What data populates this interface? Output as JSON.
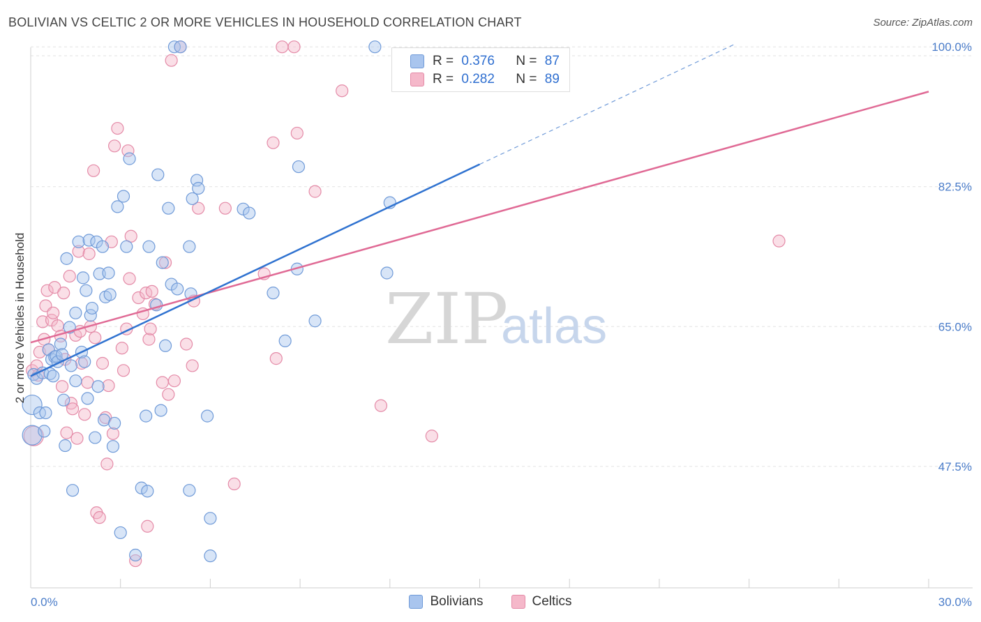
{
  "title": "BOLIVIAN VS CELTIC 2 OR MORE VEHICLES IN HOUSEHOLD CORRELATION CHART",
  "source": "Source: ZipAtlas.com",
  "watermark": {
    "zip": "ZIP",
    "atlas": "atlas"
  },
  "legend": {
    "r_label": "R = ",
    "n_label": "N = ",
    "bolivians": {
      "r": "0.376",
      "n": "87"
    },
    "celtics": {
      "r": "0.282",
      "n": "89"
    }
  },
  "colors": {
    "blue_fill": "#a9c5ee",
    "blue_stroke": "#6f9ad8",
    "blue_line": "#2f72d0",
    "pink_fill": "#f5b8ca",
    "pink_stroke": "#e48aa7",
    "pink_line": "#e06a95",
    "grid": "#e2e2e2",
    "axis_text": "#4a7cc9"
  },
  "chart_data": {
    "type": "scatter",
    "title": "BOLIVIAN VS CELTIC 2 OR MORE VEHICLES IN HOUSEHOLD CORRELATION CHART",
    "xlabel": "",
    "ylabel": "2 or more Vehicles in Household",
    "xlim": [
      0,
      30
    ],
    "ylim": [
      32.3,
      101.5
    ],
    "x_tick_labels": [
      "0.0%",
      "30.0%"
    ],
    "y_ticks": [
      47.5,
      65.0,
      82.5,
      100.0
    ],
    "y_tick_labels": [
      "47.5%",
      "65.0%",
      "82.5%",
      "100.0%"
    ],
    "legend_labels": [
      "Bolivians",
      "Celtics"
    ],
    "series": [
      {
        "name": "Bolivians",
        "trend": {
          "x0": 0.0,
          "y0": 58.8,
          "x1": 15.0,
          "y1": 85.3,
          "dash_to_x": 23.5,
          "dash_to_y": 100.3
        },
        "points": [
          [
            0.05,
            55.2
          ],
          [
            0.05,
            51.4
          ],
          [
            0.1,
            59.0
          ],
          [
            0.2,
            58.5
          ],
          [
            0.3,
            54.2
          ],
          [
            0.4,
            59.2
          ],
          [
            0.45,
            51.9
          ],
          [
            0.5,
            54.2
          ],
          [
            0.6,
            62.1
          ],
          [
            0.65,
            59.1
          ],
          [
            0.7,
            60.9
          ],
          [
            0.75,
            58.8
          ],
          [
            0.8,
            61.2
          ],
          [
            0.85,
            61.3
          ],
          [
            0.9,
            60.6
          ],
          [
            1.0,
            62.8
          ],
          [
            1.05,
            61.5
          ],
          [
            1.1,
            55.8
          ],
          [
            1.15,
            50.1
          ],
          [
            1.2,
            73.5
          ],
          [
            1.3,
            64.9
          ],
          [
            1.35,
            60.1
          ],
          [
            1.4,
            44.5
          ],
          [
            1.5,
            66.7
          ],
          [
            1.5,
            58.2
          ],
          [
            1.6,
            75.6
          ],
          [
            1.7,
            61.8
          ],
          [
            1.75,
            71.1
          ],
          [
            1.8,
            60.6
          ],
          [
            1.85,
            69.5
          ],
          [
            1.9,
            56.0
          ],
          [
            1.95,
            75.8
          ],
          [
            2.0,
            66.4
          ],
          [
            2.05,
            67.3
          ],
          [
            2.15,
            51.1
          ],
          [
            2.2,
            75.6
          ],
          [
            2.25,
            57.5
          ],
          [
            2.3,
            71.6
          ],
          [
            2.4,
            75.0
          ],
          [
            2.45,
            53.3
          ],
          [
            2.5,
            68.7
          ],
          [
            2.6,
            71.7
          ],
          [
            2.65,
            69.0
          ],
          [
            2.75,
            50.0
          ],
          [
            2.8,
            52.9
          ],
          [
            2.9,
            80.0
          ],
          [
            3.0,
            39.2
          ],
          [
            3.1,
            81.3
          ],
          [
            3.2,
            75.0
          ],
          [
            3.3,
            86.0
          ],
          [
            3.5,
            36.4
          ],
          [
            3.7,
            44.8
          ],
          [
            3.85,
            53.8
          ],
          [
            3.9,
            44.4
          ],
          [
            3.95,
            75.0
          ],
          [
            4.2,
            67.7
          ],
          [
            4.25,
            84.0
          ],
          [
            4.35,
            54.5
          ],
          [
            4.4,
            73.0
          ],
          [
            4.5,
            62.6
          ],
          [
            4.6,
            79.8
          ],
          [
            4.7,
            70.3
          ],
          [
            4.8,
            100.0
          ],
          [
            4.9,
            69.7
          ],
          [
            5.0,
            100.0
          ],
          [
            5.3,
            44.5
          ],
          [
            5.3,
            75.0
          ],
          [
            5.35,
            69.1
          ],
          [
            5.4,
            81.0
          ],
          [
            5.55,
            83.3
          ],
          [
            5.6,
            82.3
          ],
          [
            5.9,
            53.8
          ],
          [
            6.0,
            41.0
          ],
          [
            6.0,
            36.3
          ],
          [
            7.1,
            79.7
          ],
          [
            7.3,
            79.2
          ],
          [
            8.1,
            69.2
          ],
          [
            8.5,
            63.2
          ],
          [
            8.9,
            72.2
          ],
          [
            8.95,
            85.0
          ],
          [
            9.5,
            65.7
          ],
          [
            11.5,
            100.0
          ],
          [
            11.9,
            71.7
          ],
          [
            12.0,
            80.5
          ]
        ]
      },
      {
        "name": "Celtics",
        "trend": {
          "x0": 0.0,
          "y0": 63.0,
          "x1": 30.0,
          "y1": 94.4
        },
        "points": [
          [
            0.05,
            59.5
          ],
          [
            0.1,
            51.3
          ],
          [
            0.2,
            60.1
          ],
          [
            0.25,
            58.9
          ],
          [
            0.3,
            61.8
          ],
          [
            0.4,
            65.6
          ],
          [
            0.45,
            63.4
          ],
          [
            0.5,
            67.6
          ],
          [
            0.55,
            69.5
          ],
          [
            0.6,
            62.1
          ],
          [
            0.7,
            65.8
          ],
          [
            0.75,
            66.7
          ],
          [
            0.8,
            69.9
          ],
          [
            0.9,
            65.1
          ],
          [
            1.0,
            63.8
          ],
          [
            1.05,
            57.5
          ],
          [
            1.1,
            69.2
          ],
          [
            1.15,
            60.9
          ],
          [
            1.2,
            51.7
          ],
          [
            1.3,
            71.3
          ],
          [
            1.35,
            55.4
          ],
          [
            1.4,
            54.7
          ],
          [
            1.5,
            63.9
          ],
          [
            1.55,
            51.0
          ],
          [
            1.6,
            74.4
          ],
          [
            1.65,
            64.4
          ],
          [
            1.7,
            60.4
          ],
          [
            1.8,
            54.0
          ],
          [
            1.9,
            58.0
          ],
          [
            1.95,
            74.1
          ],
          [
            2.0,
            65.0
          ],
          [
            2.1,
            84.5
          ],
          [
            2.15,
            63.6
          ],
          [
            2.2,
            41.7
          ],
          [
            2.3,
            41.1
          ],
          [
            2.4,
            60.4
          ],
          [
            2.5,
            53.6
          ],
          [
            2.55,
            47.8
          ],
          [
            2.6,
            57.6
          ],
          [
            2.7,
            75.6
          ],
          [
            2.75,
            51.6
          ],
          [
            2.8,
            87.6
          ],
          [
            2.9,
            89.8
          ],
          [
            3.05,
            62.3
          ],
          [
            3.1,
            59.5
          ],
          [
            3.2,
            64.7
          ],
          [
            3.25,
            87.0
          ],
          [
            3.3,
            71.0
          ],
          [
            3.35,
            76.3
          ],
          [
            3.5,
            35.7
          ],
          [
            3.6,
            68.6
          ],
          [
            3.75,
            66.6
          ],
          [
            3.85,
            69.2
          ],
          [
            3.9,
            40.0
          ],
          [
            3.95,
            63.4
          ],
          [
            4.0,
            64.7
          ],
          [
            4.05,
            69.4
          ],
          [
            4.15,
            67.8
          ],
          [
            4.4,
            58.0
          ],
          [
            4.5,
            73.0
          ],
          [
            4.6,
            56.5
          ],
          [
            4.7,
            98.3
          ],
          [
            4.8,
            58.2
          ],
          [
            5.0,
            100.0
          ],
          [
            5.2,
            62.8
          ],
          [
            5.4,
            60.1
          ],
          [
            5.45,
            68.2
          ],
          [
            5.6,
            79.8
          ],
          [
            6.5,
            79.8
          ],
          [
            6.8,
            45.3
          ],
          [
            7.8,
            71.6
          ],
          [
            8.1,
            88.0
          ],
          [
            8.2,
            61.0
          ],
          [
            8.4,
            100.0
          ],
          [
            8.8,
            100.0
          ],
          [
            8.9,
            89.2
          ],
          [
            9.5,
            81.9
          ],
          [
            10.4,
            94.5
          ],
          [
            11.7,
            55.1
          ],
          [
            13.4,
            51.3
          ],
          [
            25.0,
            75.7
          ]
        ]
      }
    ]
  }
}
